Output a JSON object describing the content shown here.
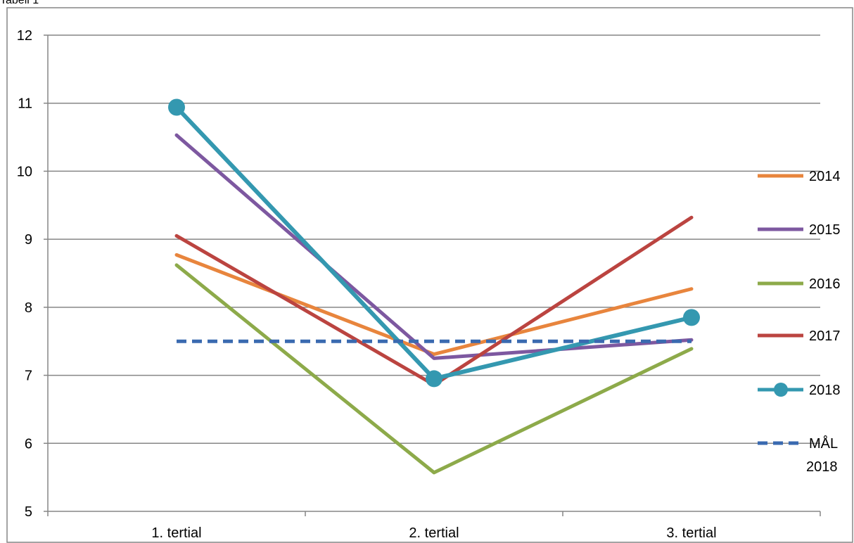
{
  "caption": "Tabell 1",
  "chart_data": {
    "type": "line",
    "title": "",
    "xlabel": "",
    "ylabel": "",
    "categories": [
      "1. tertial",
      "2. tertial",
      "3. tertial"
    ],
    "ylim": [
      5,
      12
    ],
    "yticks": [
      "5",
      "6",
      "7",
      "8",
      "9",
      "10",
      "11",
      "12"
    ],
    "grid": "horizontal",
    "legend_position": "right",
    "series": [
      {
        "name": "2014",
        "values": [
          8.77,
          7.31,
          8.27
        ],
        "color": "#E8853D",
        "style": "solid",
        "marker": "none"
      },
      {
        "name": "2015",
        "values": [
          10.53,
          7.25,
          7.52
        ],
        "color": "#7D58A0",
        "style": "solid",
        "marker": "none"
      },
      {
        "name": "2016",
        "values": [
          8.62,
          5.57,
          7.39
        ],
        "color": "#8DAA4A",
        "style": "solid",
        "marker": "none"
      },
      {
        "name": "2017",
        "values": [
          9.05,
          6.86,
          9.32
        ],
        "color": "#BB4440",
        "style": "solid",
        "marker": "none"
      },
      {
        "name": "2018",
        "values": [
          10.94,
          6.95,
          7.85
        ],
        "color": "#3498B0",
        "style": "solid",
        "marker": "circle"
      },
      {
        "name": "MÅL 2018",
        "name_lines": [
          "MÅL",
          "2018"
        ],
        "values": [
          7.5,
          7.5,
          7.5
        ],
        "color": "#3A6AB0",
        "style": "dashed",
        "marker": "none"
      }
    ]
  }
}
